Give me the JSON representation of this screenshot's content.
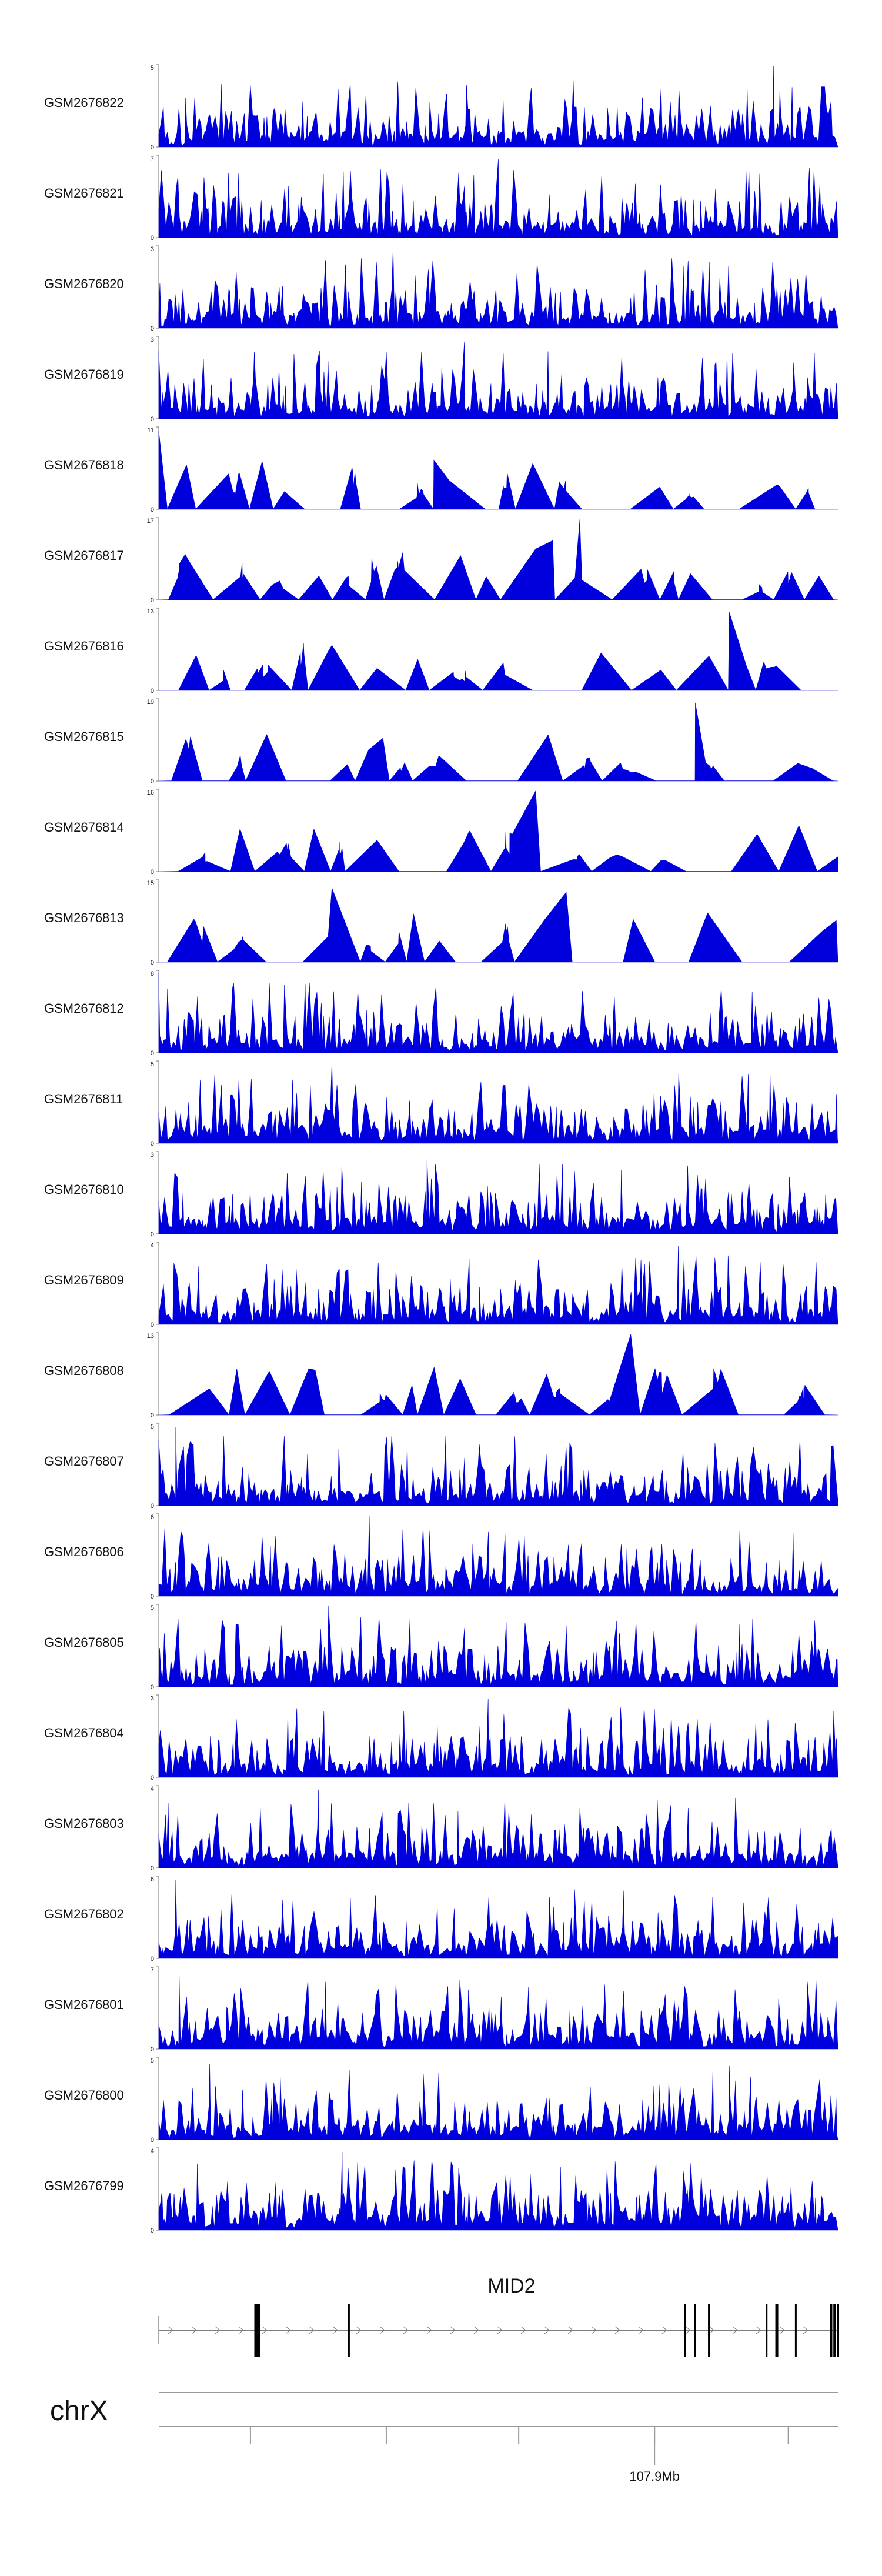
{
  "chart_data": {
    "type": "area",
    "title": "",
    "chromosome": "chrX",
    "gene": {
      "name": "MID2"
    },
    "position_labels": [
      "107.9Mb"
    ],
    "fill_color": "#0000dd",
    "axis_color": "#777777",
    "tracks": [
      {
        "name": "GSM2676822",
        "ymax": 5,
        "seed": 101,
        "mode": "dense",
        "peaks": [
          [
            0.905,
            0.98
          ]
        ]
      },
      {
        "name": "GSM2676821",
        "ymax": 7,
        "seed": 102,
        "mode": "dense",
        "peaks": [
          [
            0.5,
            0.95
          ],
          [
            0.45,
            0.62
          ]
        ]
      },
      {
        "name": "GSM2676820",
        "ymax": 3,
        "seed": 103,
        "mode": "dense",
        "peaks": [
          [
            0.345,
            0.97
          ]
        ]
      },
      {
        "name": "GSM2676819",
        "ymax": 3,
        "seed": 104,
        "mode": "dense",
        "peaks": [
          [
            0.45,
            0.93
          ]
        ]
      },
      {
        "name": "GSM2676818",
        "ymax": 11,
        "seed": 105,
        "mode": "sparse",
        "peaks": [
          [
            0.0,
            0.95
          ],
          [
            0.405,
            0.6
          ]
        ]
      },
      {
        "name": "GSM2676817",
        "ymax": 17,
        "seed": 106,
        "mode": "sparse",
        "peaks": [
          [
            0.62,
            0.98
          ],
          [
            0.58,
            0.72
          ]
        ]
      },
      {
        "name": "GSM2676816",
        "ymax": 13,
        "seed": 107,
        "mode": "sparse",
        "peaks": [
          [
            0.84,
            0.95
          ],
          [
            0.255,
            0.55
          ]
        ]
      },
      {
        "name": "GSM2676815",
        "ymax": 19,
        "seed": 108,
        "mode": "sparse",
        "peaks": [
          [
            0.79,
            0.95
          ],
          [
            0.33,
            0.52
          ]
        ]
      },
      {
        "name": "GSM2676814",
        "ymax": 16,
        "seed": 109,
        "mode": "sparse",
        "peaks": [
          [
            0.555,
            0.98
          ]
        ]
      },
      {
        "name": "GSM2676813",
        "ymax": 15,
        "seed": 110,
        "mode": "sparse",
        "peaks": [
          [
            0.255,
            0.9
          ],
          [
            0.6,
            0.85
          ]
        ]
      },
      {
        "name": "GSM2676812",
        "ymax": 8,
        "seed": 111,
        "mode": "dense",
        "peaks": [
          [
            0.0,
            0.97
          ]
        ]
      },
      {
        "name": "GSM2676811",
        "ymax": 5,
        "seed": 112,
        "mode": "dense",
        "peaks": [
          [
            0.255,
            0.98
          ],
          [
            0.9,
            0.9
          ]
        ]
      },
      {
        "name": "GSM2676810",
        "ymax": 3,
        "seed": 113,
        "mode": "dense",
        "peaks": [
          [
            0.395,
            0.9
          ]
        ]
      },
      {
        "name": "GSM2676809",
        "ymax": 4,
        "seed": 114,
        "mode": "dense",
        "peaks": [
          [
            0.765,
            0.95
          ]
        ]
      },
      {
        "name": "GSM2676808",
        "ymax": 13,
        "seed": 115,
        "mode": "sparse",
        "peaks": [
          [
            0.695,
            0.98
          ]
        ]
      },
      {
        "name": "GSM2676807",
        "ymax": 5,
        "seed": 116,
        "mode": "dense",
        "peaks": [
          [
            0.025,
            0.95
          ]
        ]
      },
      {
        "name": "GSM2676806",
        "ymax": 6,
        "seed": 117,
        "mode": "dense",
        "peaks": [
          [
            0.31,
            0.97
          ]
        ]
      },
      {
        "name": "GSM2676805",
        "ymax": 5,
        "seed": 118,
        "mode": "dense",
        "peaks": [
          [
            0.25,
            0.98
          ]
        ]
      },
      {
        "name": "GSM2676804",
        "ymax": 3,
        "seed": 119,
        "mode": "dense",
        "peaks": [
          [
            0.485,
            0.95
          ]
        ]
      },
      {
        "name": "GSM2676803",
        "ymax": 4,
        "seed": 120,
        "mode": "dense",
        "peaks": [
          [
            0.235,
            0.95
          ]
        ]
      },
      {
        "name": "GSM2676802",
        "ymax": 6,
        "seed": 121,
        "mode": "dense",
        "peaks": [
          [
            0.025,
            0.95
          ]
        ]
      },
      {
        "name": "GSM2676801",
        "ymax": 7,
        "seed": 122,
        "mode": "dense",
        "peaks": [
          [
            0.03,
            0.95
          ]
        ]
      },
      {
        "name": "GSM2676800",
        "ymax": 5,
        "seed": 123,
        "mode": "dense",
        "peaks": [
          [
            0.075,
            0.92
          ],
          [
            0.84,
            0.9
          ]
        ]
      },
      {
        "name": "GSM2676799",
        "ymax": 4,
        "seed": 124,
        "mode": "dense",
        "peaks": [
          [
            0.27,
            0.95
          ]
        ]
      }
    ]
  }
}
